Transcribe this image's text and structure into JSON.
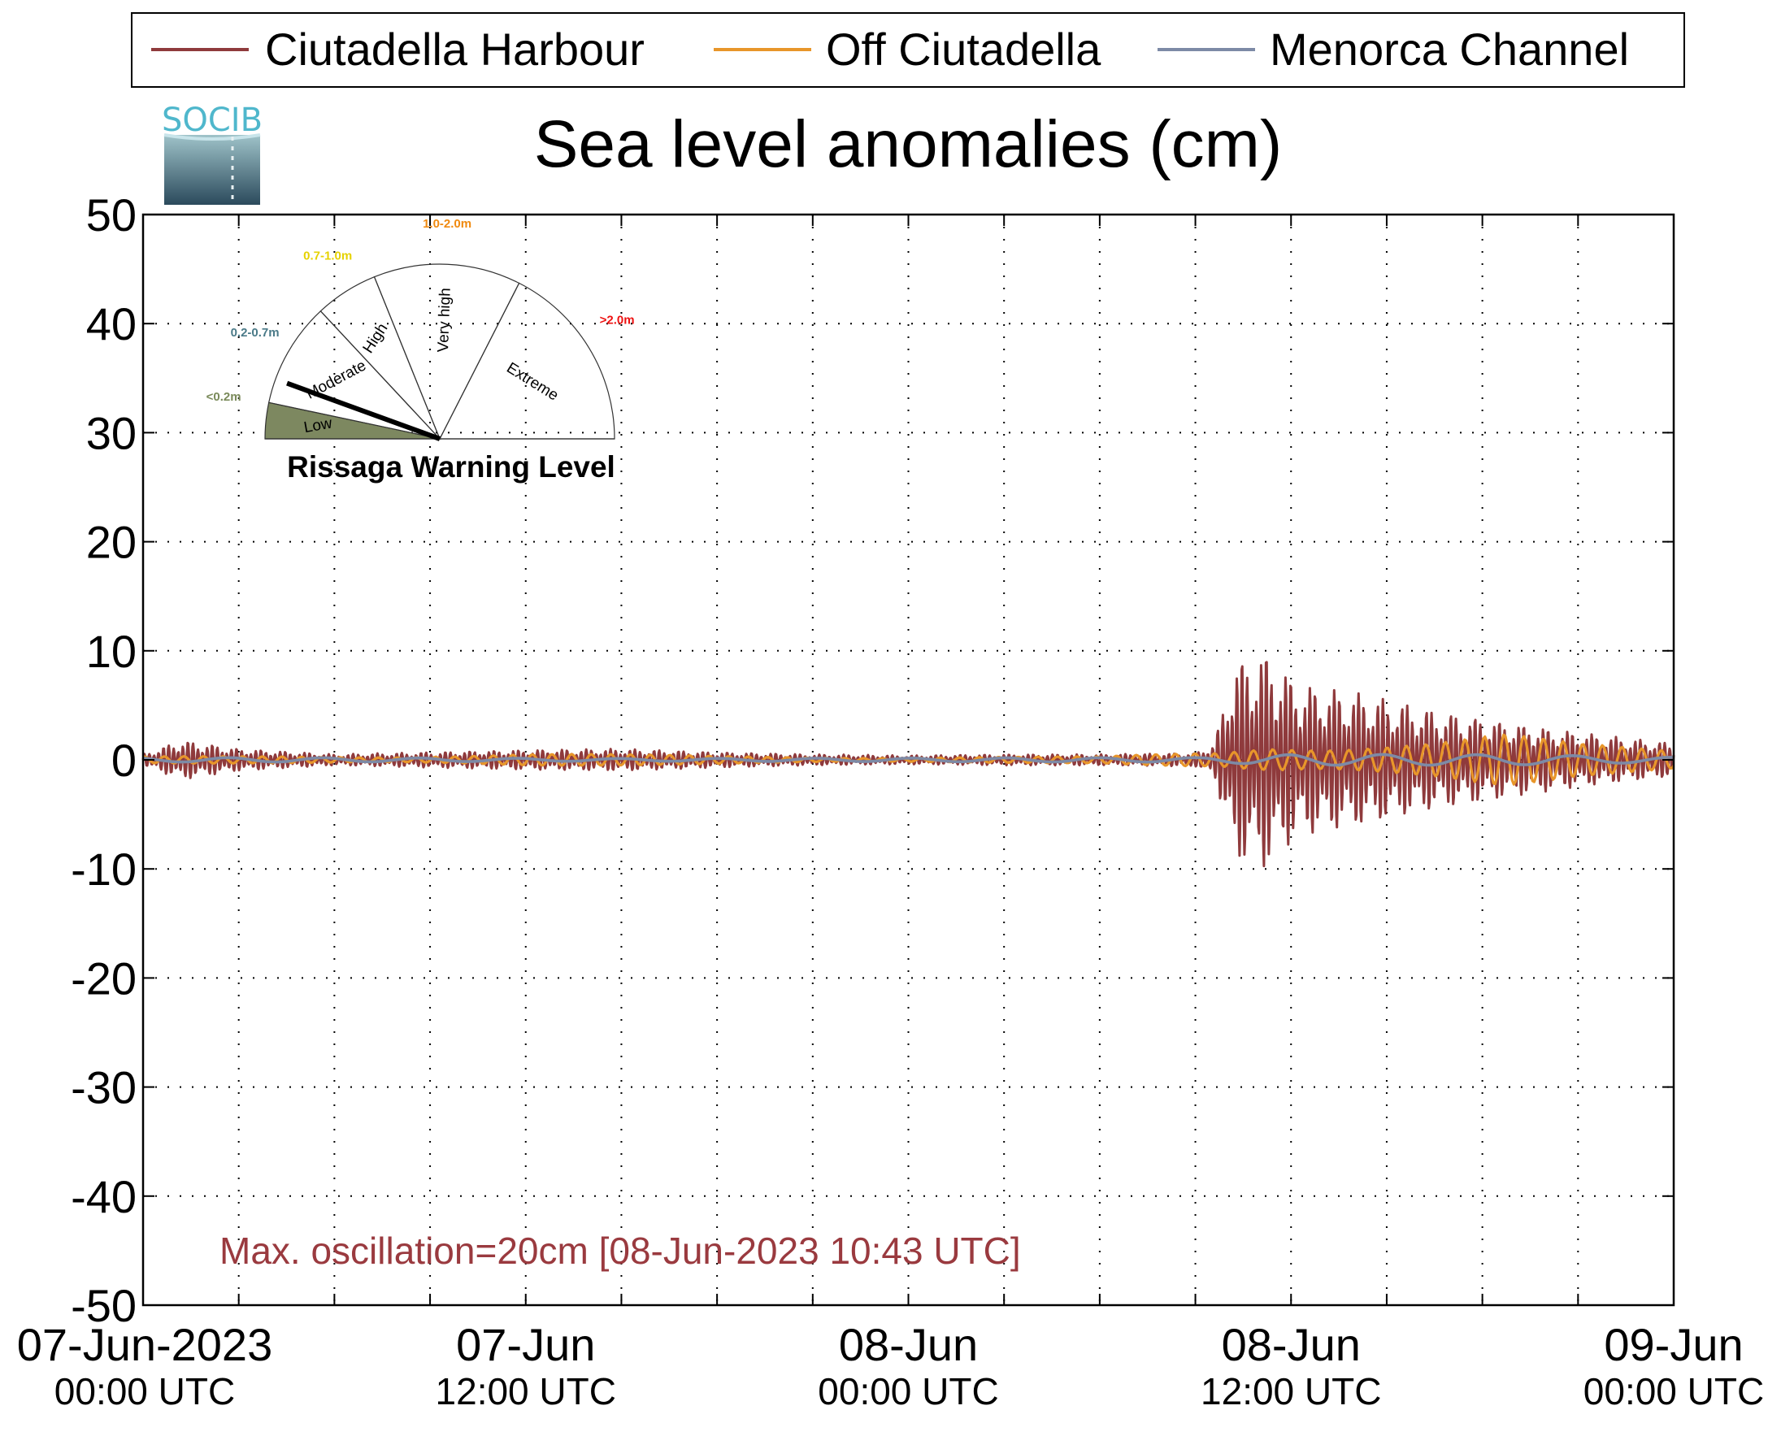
{
  "chart_data": {
    "type": "line",
    "title": "Sea level anomalies (cm)",
    "xlabel": "",
    "ylabel": "",
    "ylim": [
      -50,
      50
    ],
    "yticks": [
      50,
      40,
      30,
      20,
      10,
      0,
      -10,
      -20,
      -30,
      -40,
      -50
    ],
    "x_range_hours": [
      0,
      48
    ],
    "xticks": [
      {
        "hour": 0,
        "date": "07-Jun-2023",
        "time": "00:00 UTC"
      },
      {
        "hour": 12,
        "date": "07-Jun",
        "time": "12:00 UTC"
      },
      {
        "hour": 24,
        "date": "08-Jun",
        "time": "00:00 UTC"
      },
      {
        "hour": 36,
        "date": "08-Jun",
        "time": "12:00 UTC"
      },
      {
        "hour": 48,
        "date": "09-Jun",
        "time": "00:00 UTC"
      }
    ],
    "grid": true,
    "legend_position": "top",
    "series": [
      {
        "name": "Ciutadella Harbour",
        "color": "#8f3a3c",
        "envelope": [
          [
            0,
            0.5
          ],
          [
            1.2,
            1.8
          ],
          [
            3,
            1.0
          ],
          [
            6,
            0.5
          ],
          [
            9,
            0.7
          ],
          [
            12,
            0.9
          ],
          [
            15,
            1.0
          ],
          [
            18,
            0.7
          ],
          [
            21,
            0.5
          ],
          [
            24,
            0.4
          ],
          [
            27,
            0.5
          ],
          [
            30,
            0.5
          ],
          [
            33,
            0.6
          ],
          [
            33.6,
            1.5
          ],
          [
            34.2,
            9.0
          ],
          [
            35.2,
            10.0
          ],
          [
            36.2,
            7.0
          ],
          [
            38.3,
            6.0
          ],
          [
            40.5,
            4.5
          ],
          [
            42.6,
            3.5
          ],
          [
            45,
            2.5
          ],
          [
            48,
            1.5
          ]
        ]
      },
      {
        "name": "Off Ciutadella",
        "color": "#e8962a",
        "envelope": [
          [
            0,
            0.3
          ],
          [
            6,
            0.4
          ],
          [
            12,
            0.6
          ],
          [
            18,
            0.4
          ],
          [
            24,
            0.3
          ],
          [
            30,
            0.3
          ],
          [
            33.8,
            0.8
          ],
          [
            35.5,
            1.8
          ],
          [
            38.3,
            2.0
          ],
          [
            40.5,
            2.0
          ],
          [
            42.6,
            2.5
          ],
          [
            45,
            1.5
          ],
          [
            48,
            1.0
          ]
        ]
      },
      {
        "name": "Menorca Channel",
        "color": "#7d8aa6",
        "envelope": [
          [
            0,
            0.2
          ],
          [
            12,
            0.3
          ],
          [
            24,
            0.2
          ],
          [
            33,
            0.2
          ],
          [
            36,
            0.5
          ],
          [
            40,
            0.6
          ],
          [
            44,
            0.7
          ],
          [
            48,
            0.5
          ]
        ]
      }
    ],
    "annotation": "Max. oscillation=20cm [08-Jun-2023 10:43 UTC]",
    "annotation_color": "#9a3a3f"
  },
  "logo": {
    "text": "SOCIB"
  },
  "gauge": {
    "title": "Rissaga Warning Level",
    "current_level": "Low",
    "segments": [
      {
        "name": "Low",
        "range": "<0.2m",
        "range_color": "#7a8a5a",
        "fill": "#7d8860"
      },
      {
        "name": "Moderate",
        "range": "0.2-0.7m",
        "range_color": "#4a7a88",
        "fill": "none"
      },
      {
        "name": "High",
        "range": "0.7-1.0m",
        "range_color": "#e6d200",
        "fill": "none"
      },
      {
        "name": "Very high",
        "range": "1.0-2.0m",
        "range_color": "#f08a10",
        "fill": "none"
      },
      {
        "name": "Extreme",
        "range": ">2.0m",
        "range_color": "#ee1111",
        "fill": "none"
      }
    ]
  }
}
